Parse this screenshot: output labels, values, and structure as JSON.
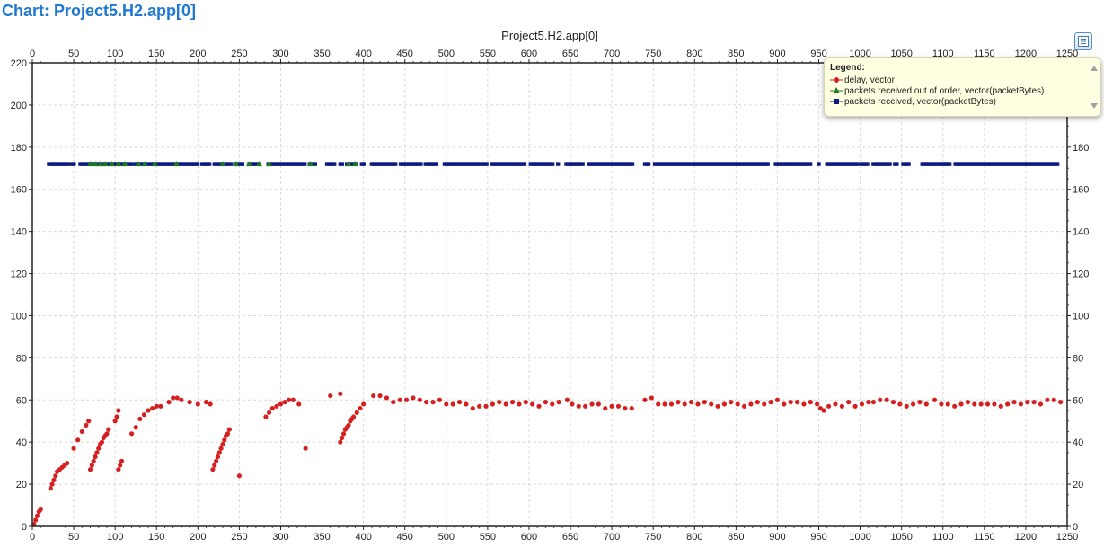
{
  "header": {
    "title": "Chart: Project5.H2.app[0]"
  },
  "legend": {
    "title": "Legend:",
    "items": [
      {
        "label": "delay, vector",
        "color": "#d42020",
        "marker": "circle"
      },
      {
        "label": "packets received out of order, vector(packetBytes)",
        "color": "#1e7a1e",
        "marker": "triangle"
      },
      {
        "label": "packets received, vector(packetBytes)",
        "color": "#0c1a80",
        "marker": "square"
      }
    ],
    "button_icon": "legend-list-icon",
    "scroll_up_icon": "scroll-up-icon",
    "scroll_down_icon": "scroll-down-icon"
  },
  "chart_data": {
    "type": "scatter",
    "title": "Project5.H2.app[0]",
    "xlim": [
      0,
      1250
    ],
    "ylim": [
      0,
      220
    ],
    "x_ticks": [
      0,
      50,
      100,
      150,
      200,
      250,
      300,
      350,
      400,
      450,
      500,
      550,
      600,
      650,
      700,
      750,
      800,
      850,
      900,
      950,
      1000,
      1050,
      1100,
      1150,
      1200,
      1250
    ],
    "y_ticks": [
      0,
      20,
      40,
      60,
      80,
      100,
      120,
      140,
      160,
      180,
      200,
      220
    ],
    "grid": true,
    "legend_position": "top-right",
    "series": [
      {
        "name": "delay, vector",
        "color": "#d42020",
        "marker": "circle",
        "points": [
          [
            2,
            1
          ],
          [
            4,
            3
          ],
          [
            6,
            5
          ],
          [
            8,
            7
          ],
          [
            10,
            8
          ],
          [
            22,
            18
          ],
          [
            24,
            20
          ],
          [
            26,
            22
          ],
          [
            28,
            24
          ],
          [
            30,
            26
          ],
          [
            33,
            27
          ],
          [
            36,
            28
          ],
          [
            39,
            29
          ],
          [
            42,
            30
          ],
          [
            50,
            37
          ],
          [
            55,
            41
          ],
          [
            60,
            45
          ],
          [
            65,
            48
          ],
          [
            68,
            50
          ],
          [
            70,
            27
          ],
          [
            72,
            29
          ],
          [
            74,
            31
          ],
          [
            76,
            33
          ],
          [
            78,
            35
          ],
          [
            80,
            37
          ],
          [
            82,
            39
          ],
          [
            84,
            40
          ],
          [
            86,
            42
          ],
          [
            88,
            43
          ],
          [
            90,
            44
          ],
          [
            92,
            46
          ],
          [
            100,
            50
          ],
          [
            102,
            52
          ],
          [
            104,
            55
          ],
          [
            104,
            27
          ],
          [
            106,
            29
          ],
          [
            108,
            31
          ],
          [
            120,
            44
          ],
          [
            125,
            47
          ],
          [
            130,
            51
          ],
          [
            135,
            53
          ],
          [
            140,
            55
          ],
          [
            145,
            56
          ],
          [
            150,
            57
          ],
          [
            155,
            57
          ],
          [
            165,
            59
          ],
          [
            170,
            61
          ],
          [
            175,
            61
          ],
          [
            180,
            60
          ],
          [
            190,
            59
          ],
          [
            200,
            58
          ],
          [
            210,
            59
          ],
          [
            215,
            58
          ],
          [
            218,
            27
          ],
          [
            220,
            29
          ],
          [
            222,
            31
          ],
          [
            224,
            33
          ],
          [
            226,
            35
          ],
          [
            228,
            37
          ],
          [
            230,
            39
          ],
          [
            232,
            41
          ],
          [
            234,
            43
          ],
          [
            236,
            44
          ],
          [
            238,
            46
          ],
          [
            250,
            24
          ],
          [
            282,
            52
          ],
          [
            286,
            54
          ],
          [
            290,
            56
          ],
          [
            295,
            57
          ],
          [
            300,
            58
          ],
          [
            305,
            59
          ],
          [
            310,
            60
          ],
          [
            315,
            60
          ],
          [
            322,
            58
          ],
          [
            330,
            37
          ],
          [
            360,
            62
          ],
          [
            372,
            40
          ],
          [
            374,
            42
          ],
          [
            376,
            44
          ],
          [
            378,
            46
          ],
          [
            380,
            47
          ],
          [
            382,
            48
          ],
          [
            384,
            50
          ],
          [
            386,
            51
          ],
          [
            388,
            52
          ],
          [
            392,
            54
          ],
          [
            396,
            56
          ],
          [
            400,
            58
          ],
          [
            372,
            63
          ],
          [
            412,
            62
          ],
          [
            420,
            62
          ],
          [
            428,
            61
          ],
          [
            436,
            59
          ],
          [
            444,
            60
          ],
          [
            452,
            60
          ],
          [
            460,
            61
          ],
          [
            468,
            60
          ],
          [
            476,
            59
          ],
          [
            484,
            59
          ],
          [
            492,
            60
          ],
          [
            500,
            58
          ],
          [
            508,
            58
          ],
          [
            516,
            59
          ],
          [
            524,
            58
          ],
          [
            532,
            56
          ],
          [
            540,
            57
          ],
          [
            548,
            57
          ],
          [
            556,
            58
          ],
          [
            564,
            59
          ],
          [
            572,
            58
          ],
          [
            580,
            59
          ],
          [
            588,
            58
          ],
          [
            596,
            59
          ],
          [
            604,
            58
          ],
          [
            612,
            57
          ],
          [
            620,
            59
          ],
          [
            628,
            58
          ],
          [
            636,
            59
          ],
          [
            646,
            60
          ],
          [
            652,
            58
          ],
          [
            660,
            57
          ],
          [
            668,
            57
          ],
          [
            676,
            58
          ],
          [
            684,
            58
          ],
          [
            692,
            56
          ],
          [
            700,
            57
          ],
          [
            708,
            57
          ],
          [
            716,
            56
          ],
          [
            724,
            56
          ],
          [
            740,
            60
          ],
          [
            748,
            61
          ],
          [
            756,
            58
          ],
          [
            764,
            58
          ],
          [
            772,
            58
          ],
          [
            780,
            59
          ],
          [
            788,
            58
          ],
          [
            796,
            59
          ],
          [
            804,
            58
          ],
          [
            812,
            59
          ],
          [
            820,
            58
          ],
          [
            828,
            57
          ],
          [
            836,
            58
          ],
          [
            844,
            59
          ],
          [
            852,
            58
          ],
          [
            860,
            57
          ],
          [
            868,
            58
          ],
          [
            876,
            59
          ],
          [
            884,
            58
          ],
          [
            892,
            59
          ],
          [
            900,
            60
          ],
          [
            908,
            58
          ],
          [
            916,
            59
          ],
          [
            924,
            59
          ],
          [
            932,
            58
          ],
          [
            940,
            59
          ],
          [
            948,
            58
          ],
          [
            952,
            56
          ],
          [
            956,
            55
          ],
          [
            962,
            57
          ],
          [
            970,
            58
          ],
          [
            978,
            57
          ],
          [
            986,
            59
          ],
          [
            994,
            57
          ],
          [
            1002,
            58
          ],
          [
            1010,
            59
          ],
          [
            1016,
            59
          ],
          [
            1024,
            60
          ],
          [
            1032,
            60
          ],
          [
            1040,
            59
          ],
          [
            1048,
            58
          ],
          [
            1056,
            57
          ],
          [
            1064,
            58
          ],
          [
            1072,
            59
          ],
          [
            1080,
            58
          ],
          [
            1090,
            60
          ],
          [
            1098,
            58
          ],
          [
            1106,
            58
          ],
          [
            1114,
            57
          ],
          [
            1122,
            58
          ],
          [
            1130,
            59
          ],
          [
            1138,
            58
          ],
          [
            1146,
            58
          ],
          [
            1154,
            58
          ],
          [
            1162,
            58
          ],
          [
            1170,
            57
          ],
          [
            1178,
            58
          ],
          [
            1186,
            59
          ],
          [
            1194,
            58
          ],
          [
            1202,
            59
          ],
          [
            1210,
            59
          ],
          [
            1218,
            58
          ],
          [
            1226,
            60
          ],
          [
            1234,
            60
          ],
          [
            1242,
            59
          ]
        ]
      },
      {
        "name": "packets received out of order, vector(packetBytes)",
        "color": "#1e7a1e",
        "marker": "triangle",
        "points": [
          [
            70,
            172
          ],
          [
            76,
            172
          ],
          [
            82,
            172
          ],
          [
            88,
            172
          ],
          [
            96,
            172
          ],
          [
            104,
            172
          ],
          [
            112,
            172
          ],
          [
            128,
            172
          ],
          [
            136,
            172
          ],
          [
            148,
            172
          ],
          [
            174,
            172
          ],
          [
            230,
            172
          ],
          [
            246,
            172
          ],
          [
            262,
            172
          ],
          [
            274,
            172
          ],
          [
            286,
            172
          ],
          [
            336,
            172
          ],
          [
            382,
            172
          ],
          [
            390,
            172
          ]
        ]
      },
      {
        "name": "packets received, vector(packetBytes)",
        "color": "#0c1a80",
        "marker": "square",
        "ranges": [
          [
            20,
            45
          ],
          [
            48,
            52
          ],
          [
            58,
            120
          ],
          [
            124,
            135
          ],
          [
            140,
            200
          ],
          [
            205,
            215
          ],
          [
            220,
            240
          ],
          [
            245,
            255
          ],
          [
            262,
            275
          ],
          [
            285,
            330
          ],
          [
            335,
            342
          ],
          [
            356,
            366
          ],
          [
            372,
            375
          ],
          [
            380,
            392
          ],
          [
            398,
            402
          ],
          [
            410,
            440
          ],
          [
            445,
            470
          ],
          [
            475,
            490
          ],
          [
            498,
            550
          ],
          [
            555,
            595
          ],
          [
            602,
            630
          ],
          [
            635,
            637
          ],
          [
            645,
            665
          ],
          [
            672,
            725
          ],
          [
            740,
            745
          ],
          [
            752,
            890
          ],
          [
            898,
            942
          ],
          [
            950,
            952
          ],
          [
            960,
            998
          ],
          [
            1002,
            1010
          ],
          [
            1016,
            1036
          ],
          [
            1042,
            1046
          ],
          [
            1052,
            1060
          ],
          [
            1075,
            1110
          ],
          [
            1115,
            1240
          ]
        ],
        "value": 172
      }
    ]
  }
}
